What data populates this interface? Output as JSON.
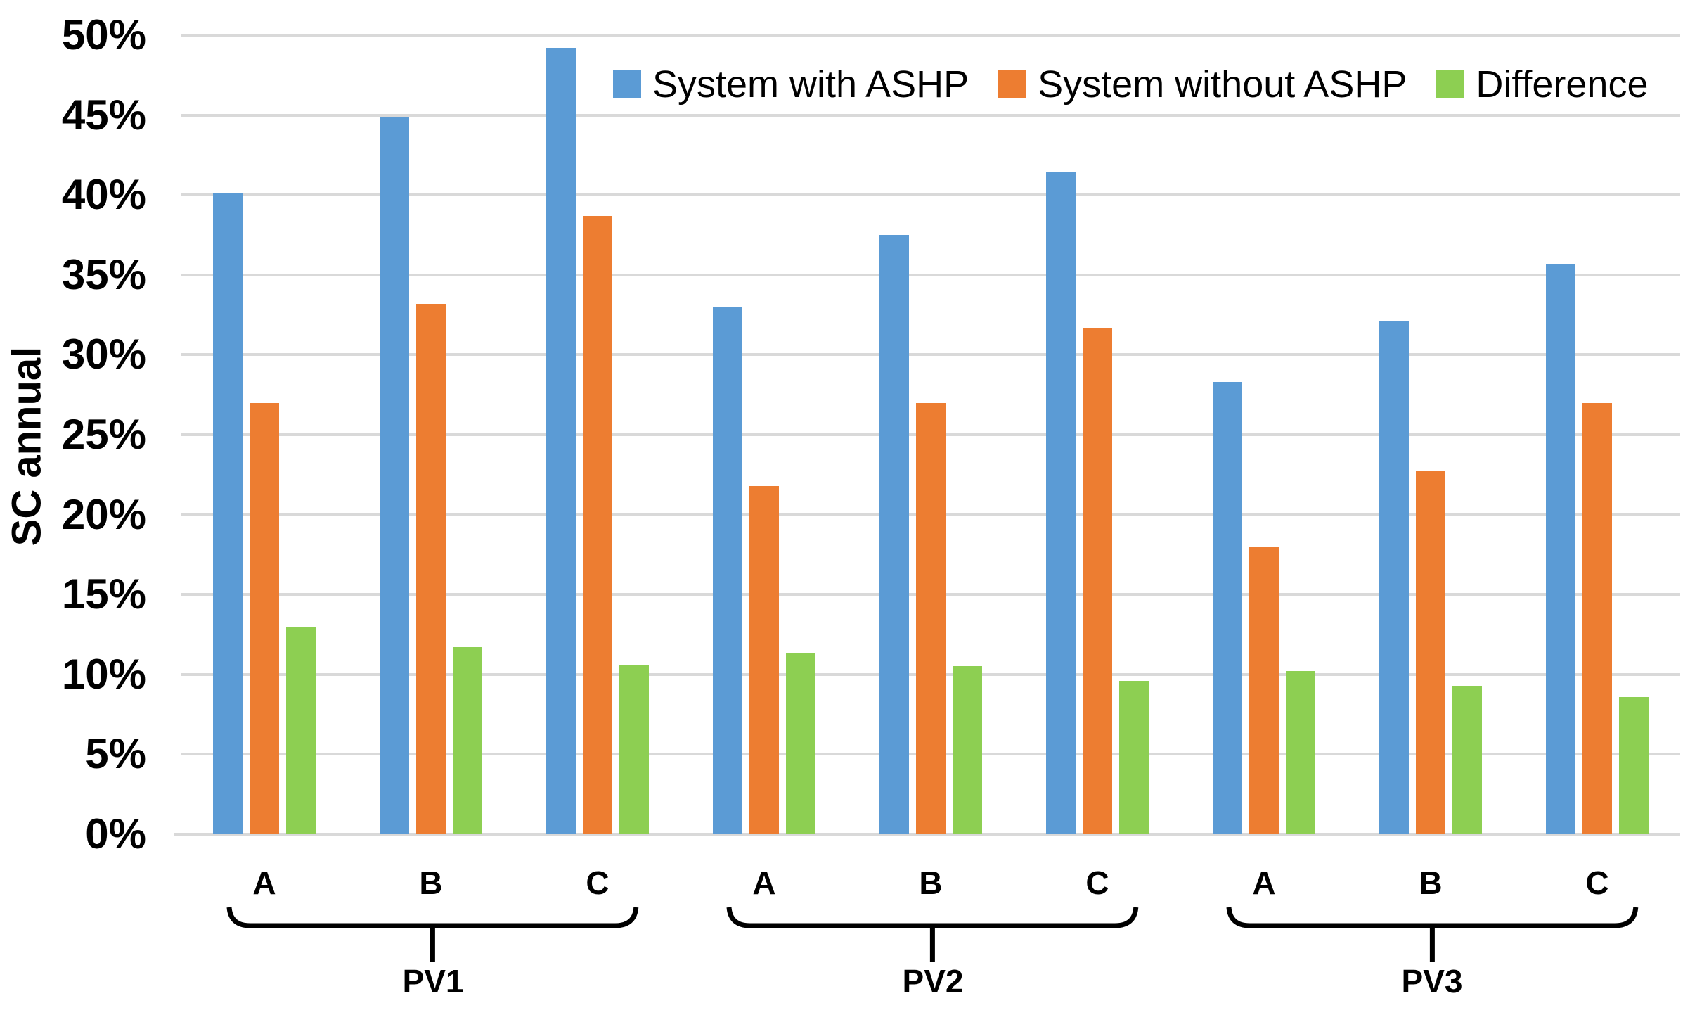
{
  "chart_data": {
    "type": "bar",
    "title": "",
    "y_axis_title": "SC annual",
    "ylim": [
      0,
      50
    ],
    "y_tick_step": 5,
    "y_tick_format": "percent",
    "grid": true,
    "legend_position": "top-right-inside",
    "groups": [
      {
        "label": "PV1",
        "categories": [
          "A",
          "B",
          "C"
        ]
      },
      {
        "label": "PV2",
        "categories": [
          "A",
          "B",
          "C"
        ]
      },
      {
        "label": "PV3",
        "categories": [
          "A",
          "B",
          "C"
        ]
      }
    ],
    "categories": [
      "A",
      "B",
      "C",
      "A",
      "B",
      "C",
      "A",
      "B",
      "C"
    ],
    "series": [
      {
        "name": "System with ASHP",
        "color": "#5b9bd5",
        "values": [
          40.1,
          44.9,
          49.2,
          33.0,
          37.5,
          41.4,
          28.3,
          32.1,
          35.7
        ]
      },
      {
        "name": "System without ASHP",
        "color": "#ed7d31",
        "values": [
          27.0,
          33.2,
          38.7,
          21.8,
          27.0,
          31.7,
          18.0,
          22.7,
          27.0
        ]
      },
      {
        "name": "Difference",
        "color": "#8dcf52",
        "values": [
          13.0,
          11.7,
          10.6,
          11.3,
          10.5,
          9.6,
          10.2,
          9.3,
          8.6
        ]
      }
    ],
    "colors": {
      "gridline": "#d9d9d9",
      "axis_line": "#d9d9d9",
      "text": "#000000",
      "bracket": "#000000"
    }
  }
}
